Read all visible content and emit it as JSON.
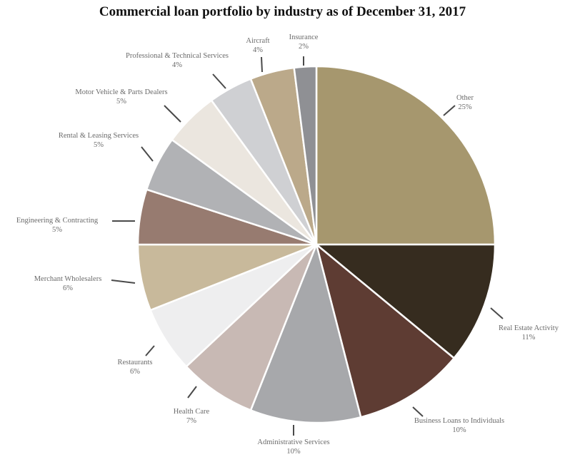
{
  "chart_data": {
    "type": "pie",
    "title": "Commercial loan portfolio by industry as of December 31, 2017",
    "legend": "none",
    "slices": [
      {
        "label": "Other",
        "value": 25,
        "display": "25%",
        "color": "#a6976e"
      },
      {
        "label": "Real Estate Activity",
        "value": 11,
        "display": "11%",
        "color": "#362c1f"
      },
      {
        "label": "Business Loans to Individuals",
        "value": 10,
        "display": "10%",
        "color": "#5e3c33"
      },
      {
        "label": "Administrative Services",
        "value": 10,
        "display": "10%",
        "color": "#a7a8ab"
      },
      {
        "label": "Health Care",
        "value": 7,
        "display": "7%",
        "color": "#c8b9b4"
      },
      {
        "label": "Restaurants",
        "value": 6,
        "display": "6%",
        "color": "#eeeeef"
      },
      {
        "label": "Merchant Wholesalers",
        "value": 6,
        "display": "6%",
        "color": "#c8b99b"
      },
      {
        "label": "Engineering & Contracting",
        "value": 5,
        "display": "5%",
        "color": "#977b70"
      },
      {
        "label": "Rental & Leasing Services",
        "value": 5,
        "display": "5%",
        "color": "#b1b2b5"
      },
      {
        "label": "Motor Vehicle & Parts Dealers",
        "value": 5,
        "display": "5%",
        "color": "#ebe6df"
      },
      {
        "label": "Professional & Technical Services",
        "value": 4,
        "display": "4%",
        "color": "#cfd0d3"
      },
      {
        "label": "Aircraft",
        "value": 4,
        "display": "4%",
        "color": "#bba98a"
      },
      {
        "label": "Insurance",
        "value": 2,
        "display": "2%",
        "color": "#8f9094"
      }
    ]
  }
}
